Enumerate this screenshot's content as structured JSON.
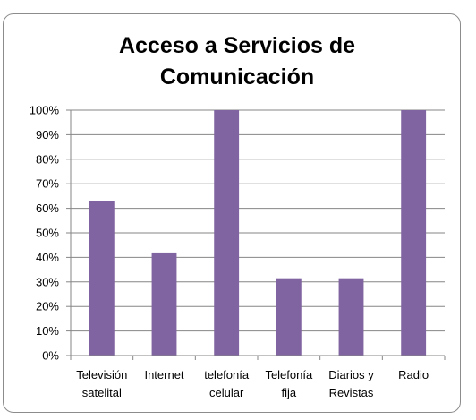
{
  "chart_data": {
    "type": "bar",
    "title": [
      "Acceso a Servicios de",
      "Comunicación"
    ],
    "categories": [
      [
        "Televisión",
        "satelital"
      ],
      [
        "Internet"
      ],
      [
        "telefonía",
        "celular"
      ],
      [
        "Telefonía",
        "fija"
      ],
      [
        "Diarios y",
        "Revistas"
      ],
      [
        "Radio"
      ]
    ],
    "values": [
      63,
      42,
      100,
      31.5,
      31.5,
      100
    ],
    "ylim": [
      0,
      100
    ],
    "yticks": [
      "0%",
      "10%",
      "20%",
      "30%",
      "40%",
      "50%",
      "60%",
      "70%",
      "80%",
      "90%",
      "100%"
    ],
    "xlabel": "",
    "ylabel": "",
    "grid": true,
    "legend": "none",
    "colors": {
      "bar": "#8064a2",
      "grid": "#868686",
      "axis": "#868686"
    }
  }
}
